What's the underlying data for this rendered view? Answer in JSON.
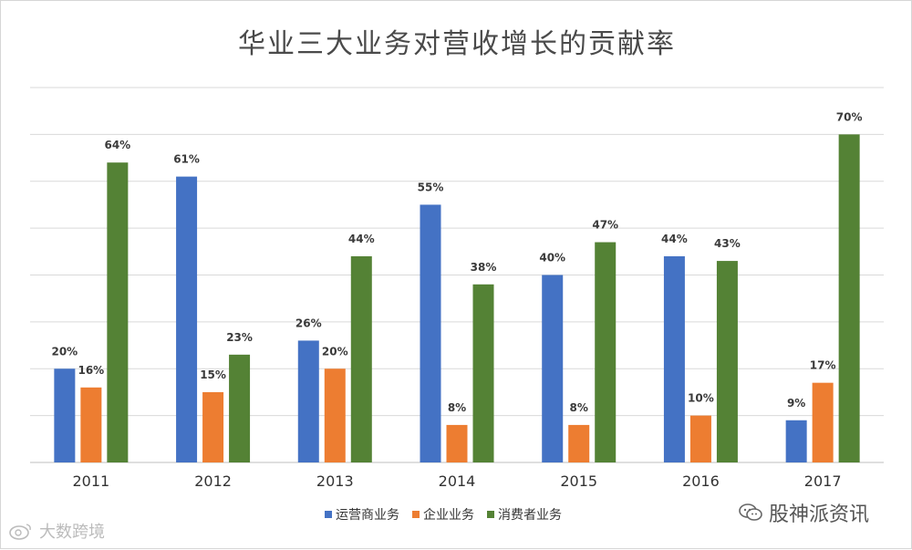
{
  "title": "华业三大业务对营收增长的贡献率",
  "legend_labels": [
    "运营商业务",
    "企业业务",
    "消费者业务"
  ],
  "colors": {
    "carrier": "#4472c4",
    "enterprise": "#ed7d31",
    "consumer": "#548235",
    "grid": "#d9d9d9"
  },
  "watermark_right": "股神派资讯",
  "watermark_left": "大数跨境",
  "chart_data": {
    "type": "bar",
    "title": "华业三大业务对营收增长的贡献率",
    "categories": [
      "2011",
      "2012",
      "2013",
      "2014",
      "2015",
      "2016",
      "2017"
    ],
    "series": [
      {
        "name": "运营商业务",
        "values": [
          20,
          61,
          26,
          55,
          40,
          44,
          9
        ],
        "labels": [
          "20%",
          "61%",
          "26%",
          "55%",
          "40%",
          "44%",
          "9%"
        ]
      },
      {
        "name": "企业业务",
        "values": [
          16,
          15,
          20,
          8,
          8,
          10,
          17
        ],
        "labels": [
          "16%",
          "15%",
          "20%",
          "8%",
          "8%",
          "10%",
          "17%"
        ]
      },
      {
        "name": "消费者业务",
        "values": [
          64,
          23,
          44,
          38,
          47,
          43,
          70
        ],
        "labels": [
          "64%",
          "23%",
          "44%",
          "38%",
          "47%",
          "43%",
          "70%"
        ]
      }
    ],
    "ylim": [
      0,
      80
    ],
    "grid": true,
    "legend_position": "bottom"
  }
}
